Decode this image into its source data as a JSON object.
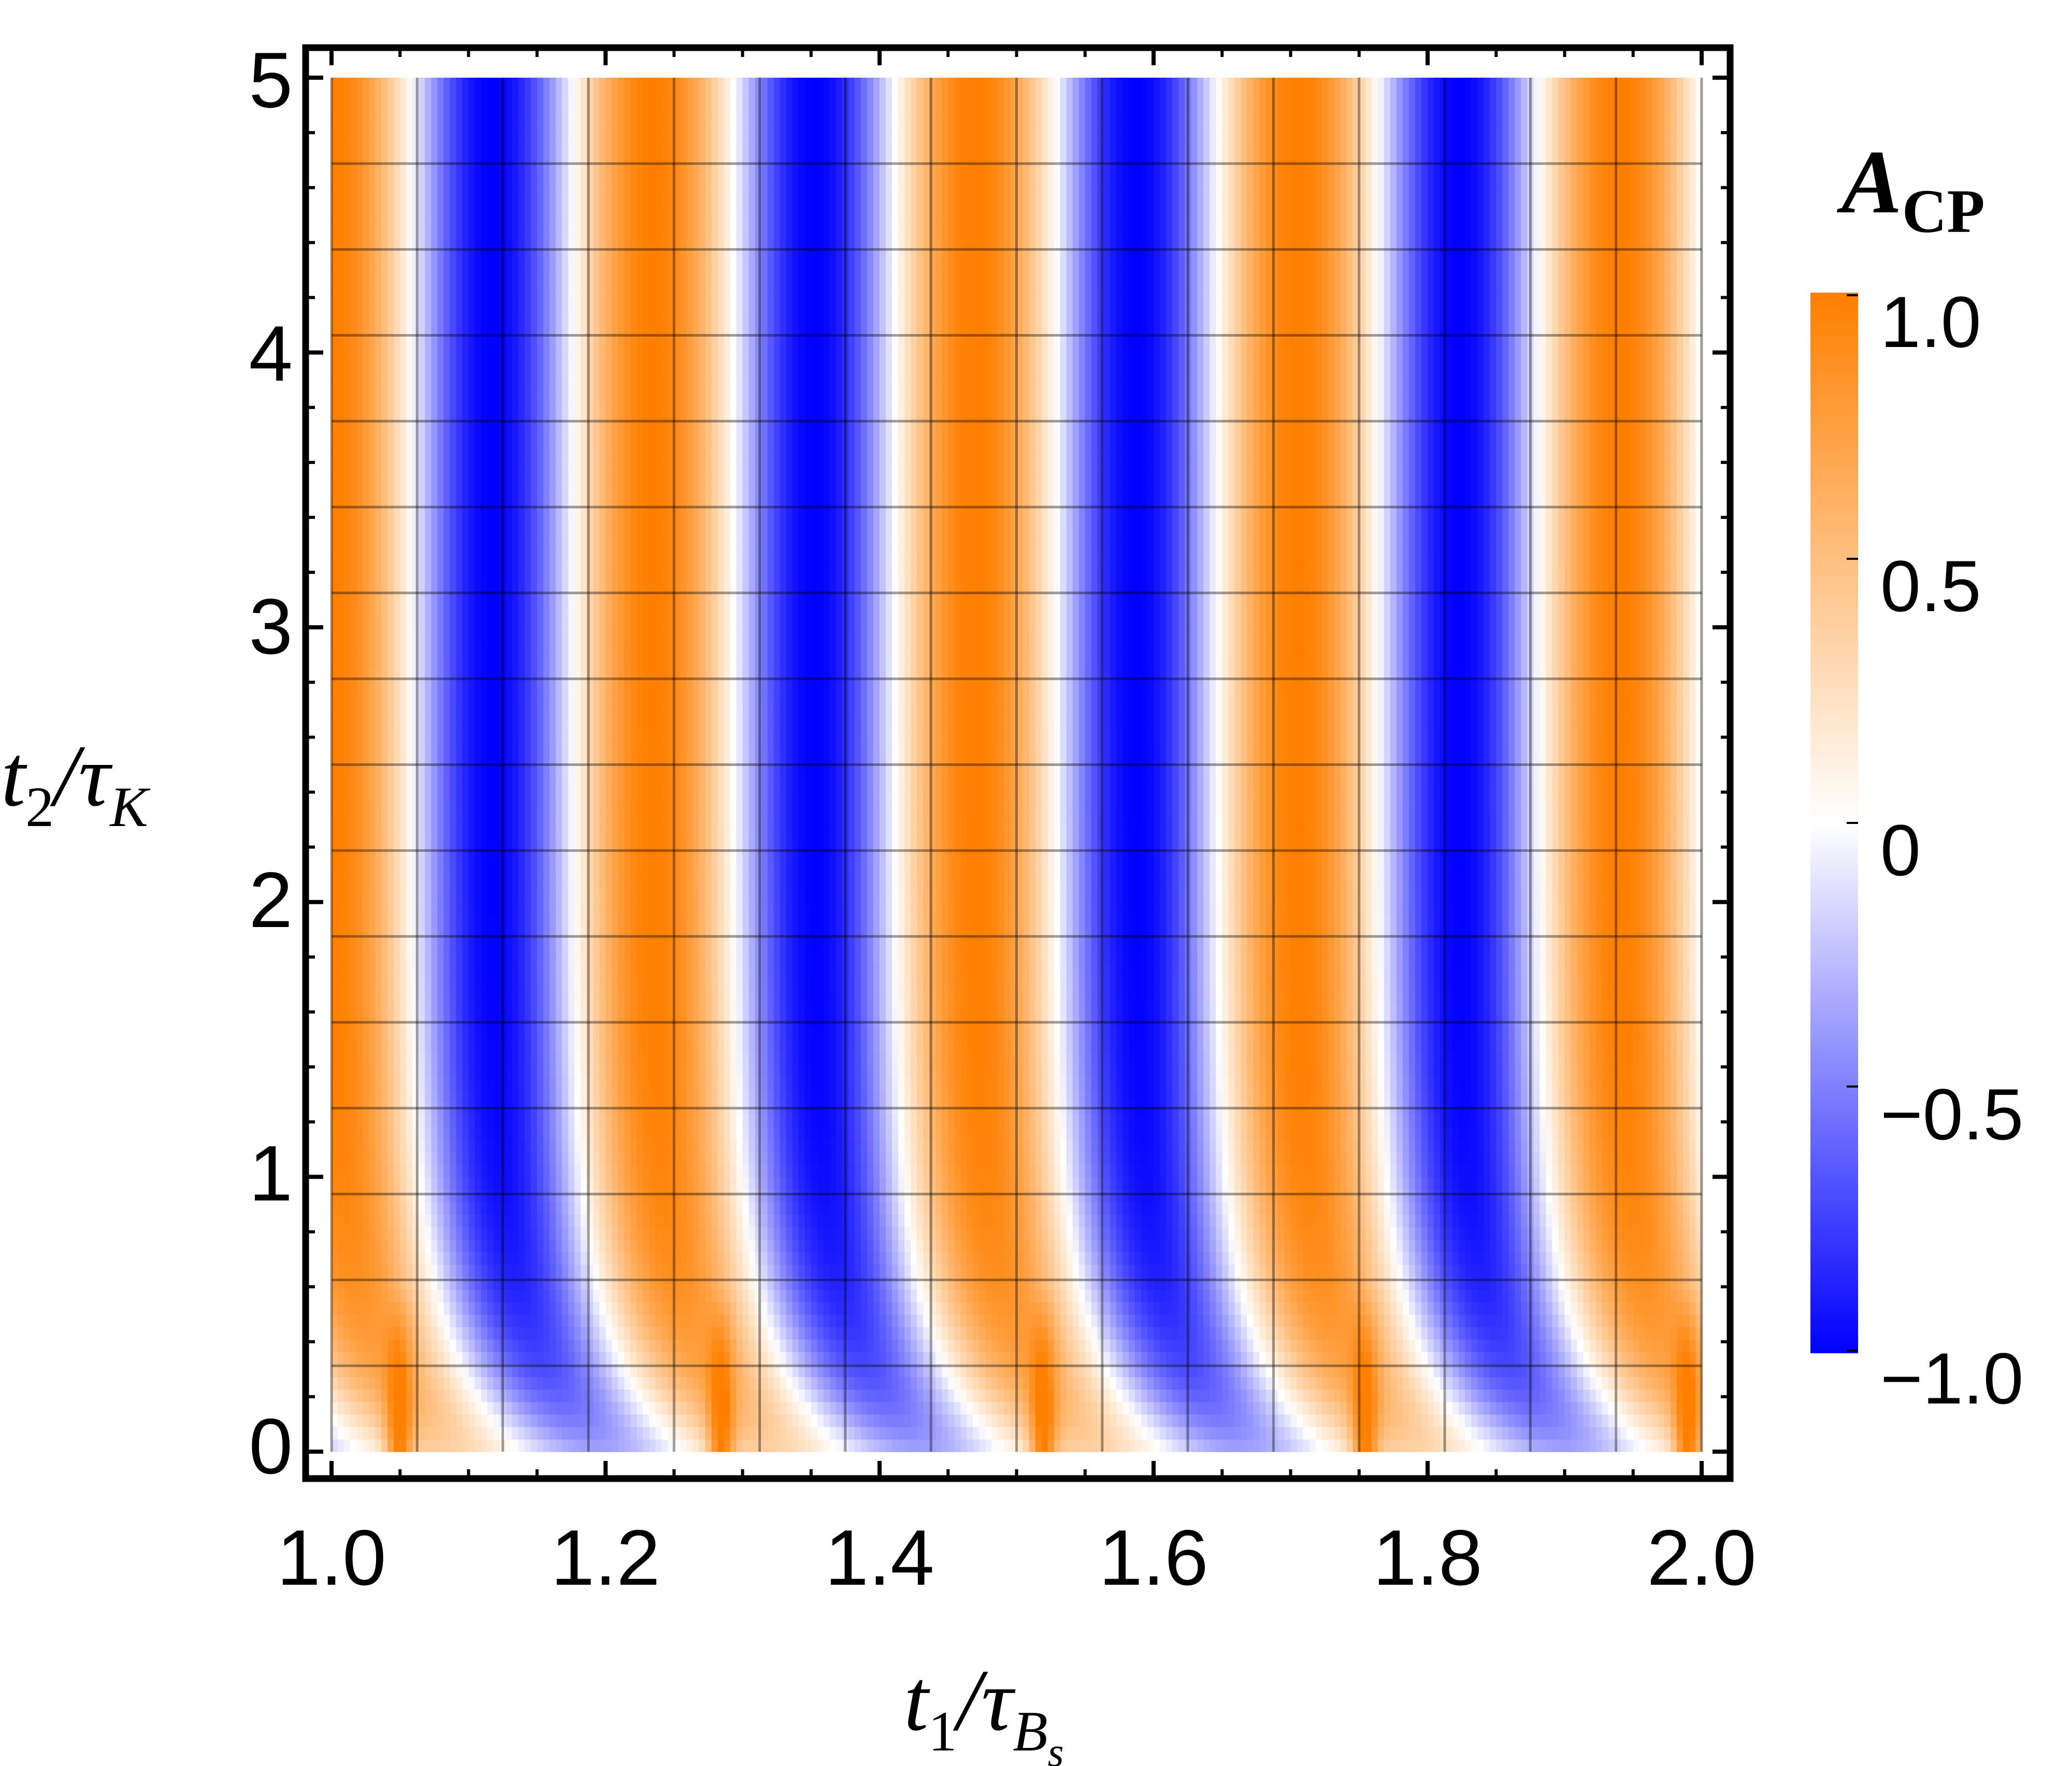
{
  "chart_data": {
    "type": "heatmap",
    "x": {
      "label_main": "t",
      "label_sub": "1",
      "label_denom": "τ",
      "label_denom_sub": "B",
      "label_denom_subsub": "s",
      "range": [
        1.0,
        2.0
      ],
      "ticks": [
        "1.0",
        "1.2",
        "1.4",
        "1.6",
        "1.8",
        "2.0"
      ],
      "tick_values": [
        1.0,
        1.2,
        1.4,
        1.6,
        1.8,
        2.0
      ],
      "grid_lines": [
        1.0,
        1.0625,
        1.125,
        1.1875,
        1.25,
        1.3125,
        1.375,
        1.4375,
        1.5,
        1.5625,
        1.625,
        1.6875,
        1.75,
        1.8125,
        1.875,
        1.9375,
        2.0
      ]
    },
    "y": {
      "label_main": "t",
      "label_sub": "2",
      "label_denom": "τ",
      "label_denom_sub": "K",
      "range": [
        0,
        5
      ],
      "ticks": [
        "0",
        "1",
        "2",
        "3",
        "4",
        "5"
      ],
      "tick_values": [
        0,
        1,
        2,
        3,
        4,
        5
      ],
      "grid_lines": [
        0.3125,
        0.625,
        0.9375,
        1.25,
        1.5625,
        1.875,
        2.1875,
        2.5,
        2.8125,
        3.125,
        3.4375,
        3.75,
        4.0625,
        4.375,
        4.6875
      ]
    },
    "colorbar": {
      "title_main": "A",
      "title_sub": "CP",
      "range": [
        -1.0,
        1.0
      ],
      "ticks": [
        "1.0",
        "0.5",
        "0",
        "−0.5",
        "−1.0"
      ],
      "tick_values": [
        1.0,
        0.5,
        0,
        -0.5,
        -1.0
      ],
      "color_max": "#ff7f00",
      "color_mid": "#ffffff",
      "color_min": "#0000ff"
    },
    "model": {
      "period_x": 0.235,
      "stripe_centers_positive": [
        1.0,
        1.235,
        1.47,
        1.705,
        1.94
      ],
      "stripe_centers_negative": [
        1.1175,
        1.3525,
        1.5875,
        1.8225
      ],
      "low_y_cusps_x": [
        1.05,
        1.28,
        1.51,
        1.74,
        1.975
      ]
    },
    "grid": true,
    "legend": "colorbar right"
  }
}
